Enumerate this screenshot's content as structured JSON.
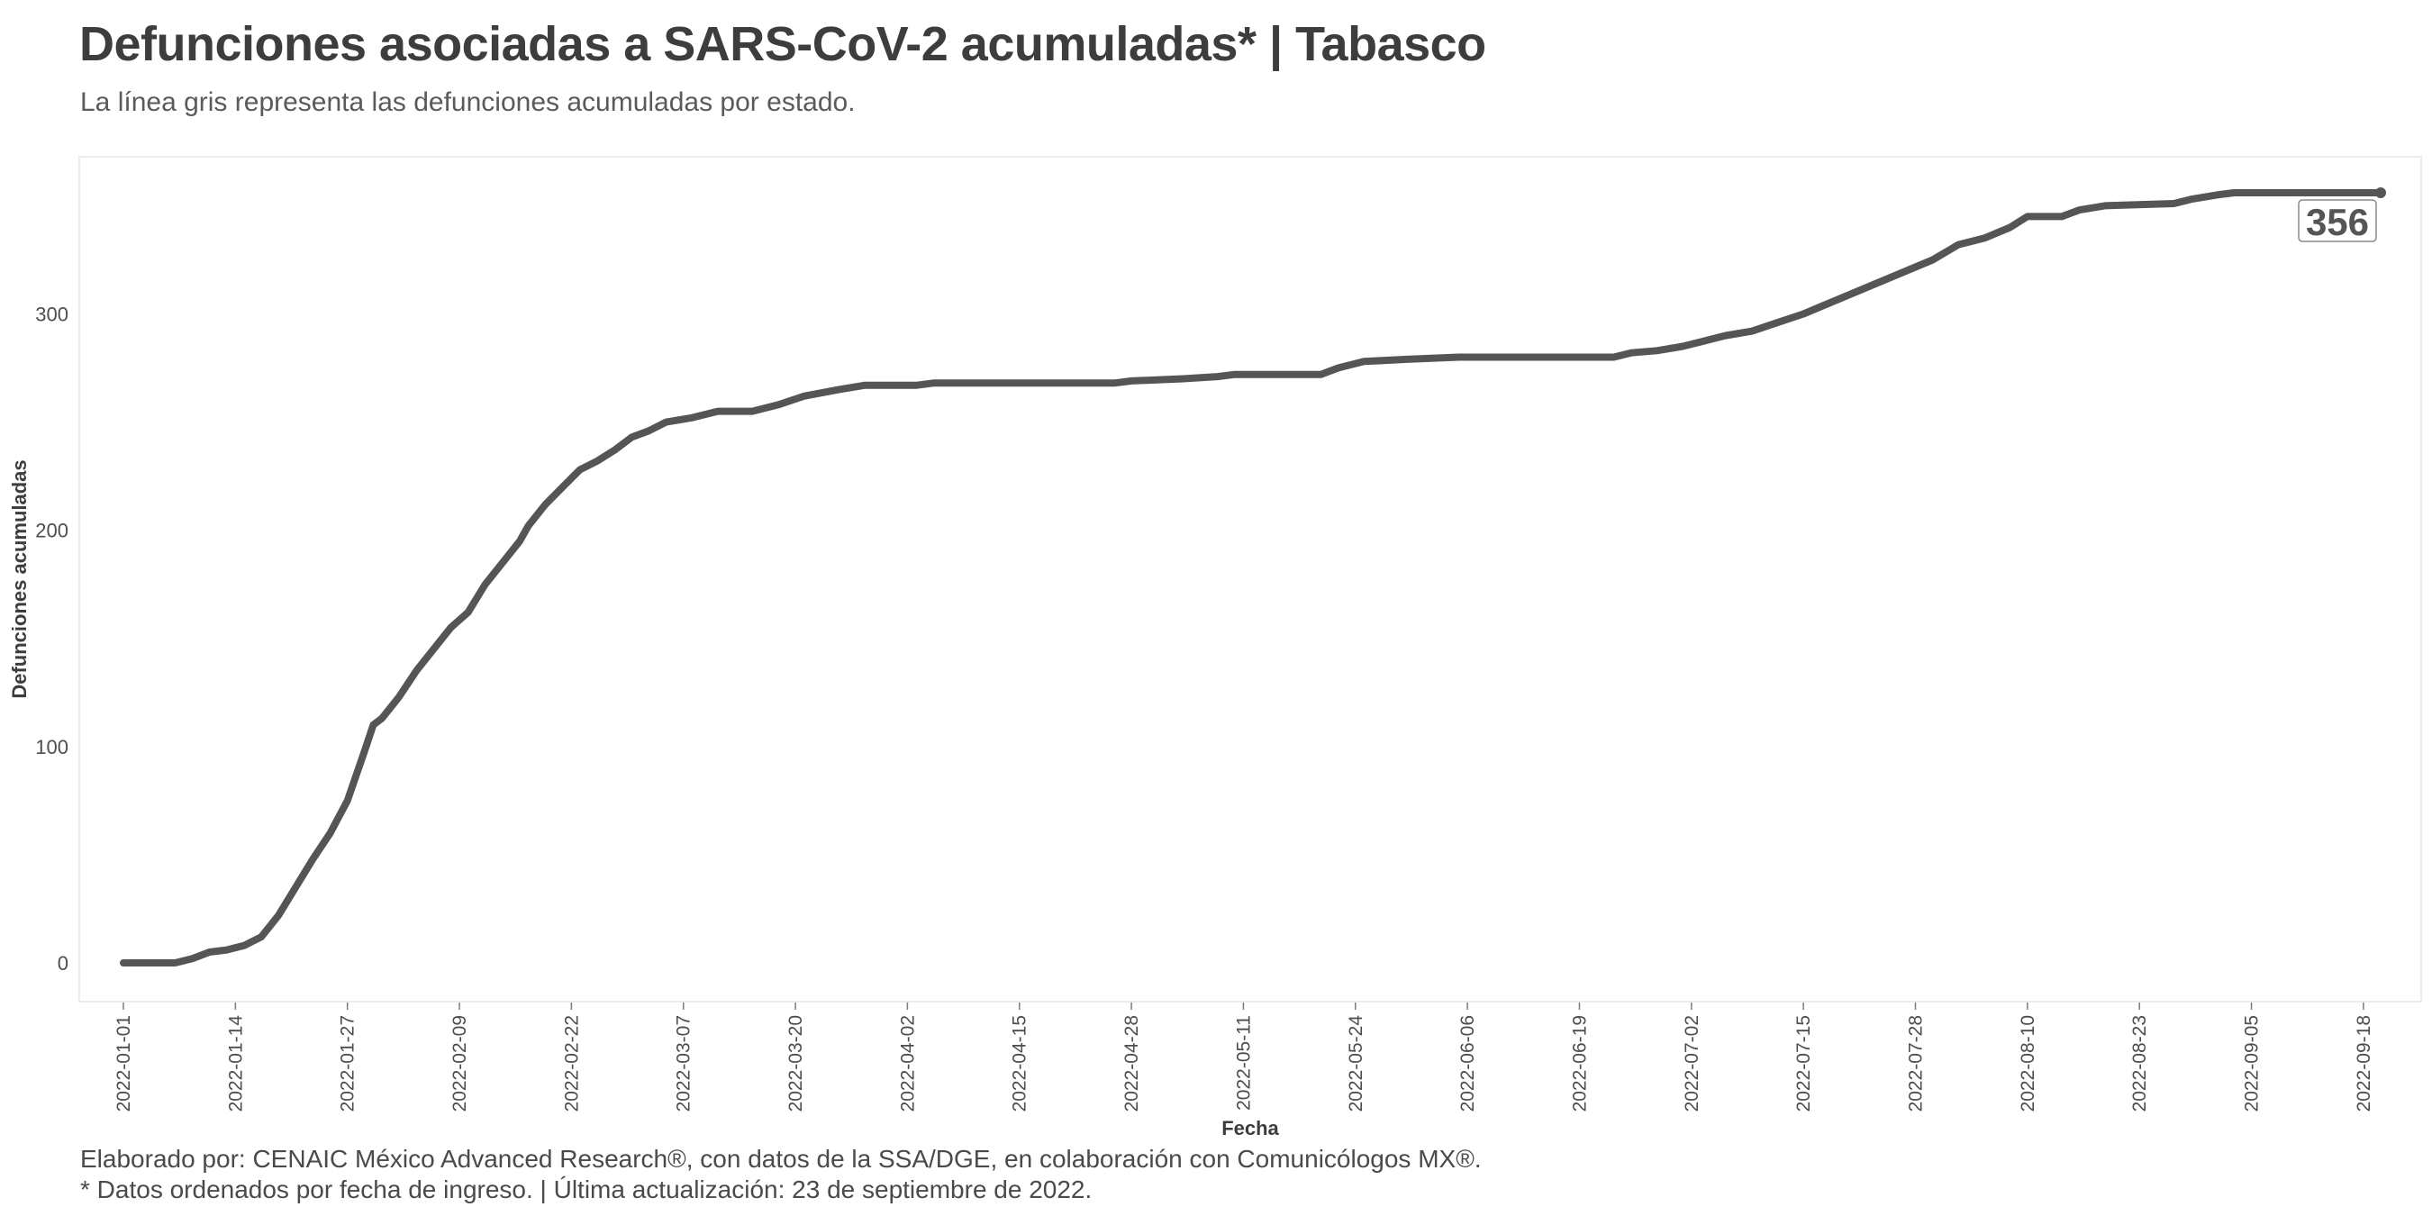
{
  "header": {
    "title": "Defunciones asociadas a SARS-CoV-2 acumuladas* | Tabasco",
    "subtitle": "La línea gris representa las defunciones acumuladas por estado."
  },
  "caption": {
    "line1": "Elaborado por: CENAIC México Advanced Research®, con datos de la SSA/DGE, en colaboración con Comunicólogos MX®.",
    "line2": "* Datos ordenados por fecha de ingreso. | Última actualización: 23 de septiembre de 2022."
  },
  "colors": {
    "line": "#555555",
    "panel_border": "#e6e6e6",
    "label_border": "#8a8a8a"
  },
  "chart_data": {
    "type": "line",
    "xlabel": "Fecha",
    "ylabel": "Defunciones acumuladas",
    "x_tick_labels": [
      "2022-01-01",
      "2022-01-14",
      "2022-01-27",
      "2022-02-09",
      "2022-02-22",
      "2022-03-07",
      "2022-03-20",
      "2022-04-02",
      "2022-04-15",
      "2022-04-28",
      "2022-05-11",
      "2022-05-24",
      "2022-06-06",
      "2022-06-19",
      "2022-07-02",
      "2022-07-15",
      "2022-07-28",
      "2022-08-10",
      "2022-08-23",
      "2022-09-05",
      "2022-09-18"
    ],
    "y_ticks": [
      0,
      100,
      200,
      300
    ],
    "xlim": [
      "2022-01-01",
      "2022-09-20"
    ],
    "ylim": [
      0,
      356
    ],
    "grid": false,
    "series": [
      {
        "points": [
          [
            "2022-01-01",
            0
          ],
          [
            "2022-01-07",
            0
          ],
          [
            "2022-01-09",
            2
          ],
          [
            "2022-01-11",
            5
          ],
          [
            "2022-01-13",
            6
          ],
          [
            "2022-01-15",
            8
          ],
          [
            "2022-01-17",
            12
          ],
          [
            "2022-01-19",
            22
          ],
          [
            "2022-01-21",
            35
          ],
          [
            "2022-01-23",
            48
          ],
          [
            "2022-01-25",
            60
          ],
          [
            "2022-01-27",
            75
          ],
          [
            "2022-01-29",
            98
          ],
          [
            "2022-01-30",
            110
          ],
          [
            "2022-01-31",
            113
          ],
          [
            "2022-02-02",
            123
          ],
          [
            "2022-02-04",
            135
          ],
          [
            "2022-02-06",
            145
          ],
          [
            "2022-02-08",
            155
          ],
          [
            "2022-02-10",
            162
          ],
          [
            "2022-02-12",
            175
          ],
          [
            "2022-02-14",
            185
          ],
          [
            "2022-02-16",
            195
          ],
          [
            "2022-02-17",
            202
          ],
          [
            "2022-02-19",
            212
          ],
          [
            "2022-02-21",
            220
          ],
          [
            "2022-02-23",
            228
          ],
          [
            "2022-02-25",
            232
          ],
          [
            "2022-02-27",
            237
          ],
          [
            "2022-03-01",
            243
          ],
          [
            "2022-03-03",
            246
          ],
          [
            "2022-03-05",
            250
          ],
          [
            "2022-03-08",
            252
          ],
          [
            "2022-03-11",
            255
          ],
          [
            "2022-03-15",
            255
          ],
          [
            "2022-03-18",
            258
          ],
          [
            "2022-03-21",
            262
          ],
          [
            "2022-03-25",
            265
          ],
          [
            "2022-03-28",
            267
          ],
          [
            "2022-04-03",
            267
          ],
          [
            "2022-04-05",
            268
          ],
          [
            "2022-04-26",
            268
          ],
          [
            "2022-04-28",
            269
          ],
          [
            "2022-05-04",
            270
          ],
          [
            "2022-05-08",
            271
          ],
          [
            "2022-05-10",
            272
          ],
          [
            "2022-05-20",
            272
          ],
          [
            "2022-05-22",
            275
          ],
          [
            "2022-05-25",
            278
          ],
          [
            "2022-05-30",
            279
          ],
          [
            "2022-06-05",
            280
          ],
          [
            "2022-06-23",
            280
          ],
          [
            "2022-06-25",
            282
          ],
          [
            "2022-06-28",
            283
          ],
          [
            "2022-07-01",
            285
          ],
          [
            "2022-07-03",
            287
          ],
          [
            "2022-07-06",
            290
          ],
          [
            "2022-07-09",
            292
          ],
          [
            "2022-07-12",
            296
          ],
          [
            "2022-07-15",
            300
          ],
          [
            "2022-07-18",
            305
          ],
          [
            "2022-07-21",
            310
          ],
          [
            "2022-07-24",
            315
          ],
          [
            "2022-07-27",
            320
          ],
          [
            "2022-07-30",
            325
          ],
          [
            "2022-08-02",
            332
          ],
          [
            "2022-08-05",
            335
          ],
          [
            "2022-08-08",
            340
          ],
          [
            "2022-08-10",
            345
          ],
          [
            "2022-08-14",
            345
          ],
          [
            "2022-08-16",
            348
          ],
          [
            "2022-08-19",
            350
          ],
          [
            "2022-08-27",
            351
          ],
          [
            "2022-08-29",
            353
          ],
          [
            "2022-09-01",
            355
          ],
          [
            "2022-09-03",
            356
          ],
          [
            "2022-09-20",
            356
          ]
        ]
      }
    ],
    "annotations": [
      {
        "x": "2022-09-20",
        "y": 356,
        "text": "356"
      }
    ]
  }
}
